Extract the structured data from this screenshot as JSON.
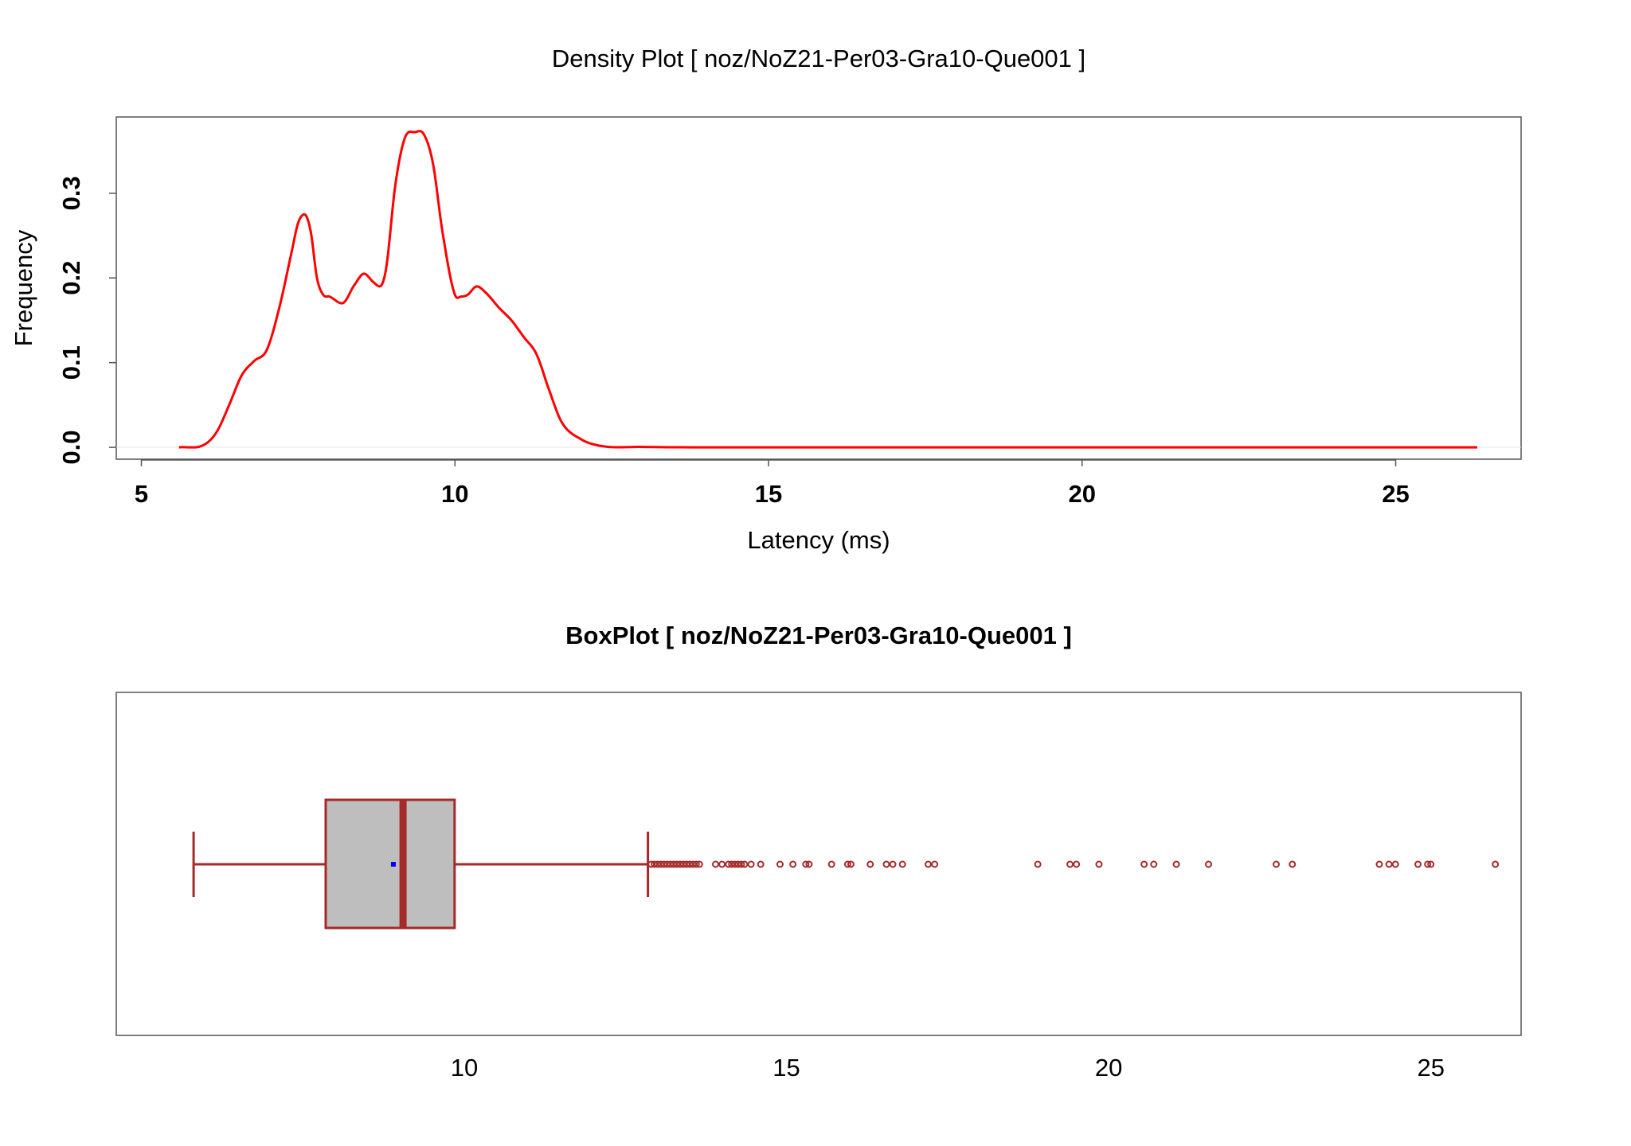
{
  "colors": {
    "density_line": "#ff0000",
    "box_stroke": "#a52a2a",
    "box_fill": "#bebebe",
    "mean_marker": "#0000ff",
    "frame": "#555555"
  },
  "chart_data": [
    {
      "type": "line",
      "title": "Density Plot [ noz/NoZ21-Per03-Gra10-Que001 ]",
      "xlabel": "Latency (ms)",
      "ylabel": "Frequency",
      "xlim": [
        4.6,
        27.0
      ],
      "ylim": [
        -0.014,
        0.39
      ],
      "xticks": [
        5,
        10,
        15,
        20,
        25
      ],
      "yticks": [
        0.0,
        0.1,
        0.2,
        0.3
      ],
      "ytick_labels": [
        "0.0",
        "0.1",
        "0.2",
        "0.3"
      ],
      "series": [
        {
          "x": [
            5.6,
            6.0,
            6.2,
            6.4,
            6.6,
            6.8,
            7.0,
            7.2,
            7.4,
            7.5,
            7.6,
            7.7,
            7.8,
            7.9,
            8.0,
            8.2,
            8.4,
            8.55,
            8.7,
            8.8,
            8.9,
            9.05,
            9.2,
            9.35,
            9.5,
            9.65,
            9.8,
            10.0,
            10.1,
            10.2,
            10.35,
            10.5,
            10.7,
            10.9,
            11.1,
            11.3,
            11.5,
            11.7,
            12.0,
            12.3,
            13.0,
            15.0,
            20.0,
            25.0,
            26.3
          ],
          "y": [
            0.0,
            0.003,
            0.018,
            0.05,
            0.085,
            0.102,
            0.115,
            0.165,
            0.232,
            0.265,
            0.275,
            0.255,
            0.2,
            0.18,
            0.178,
            0.17,
            0.192,
            0.205,
            0.195,
            0.19,
            0.21,
            0.31,
            0.365,
            0.372,
            0.37,
            0.335,
            0.255,
            0.18,
            0.178,
            0.18,
            0.19,
            0.182,
            0.165,
            0.15,
            0.13,
            0.11,
            0.068,
            0.03,
            0.01,
            0.002,
            0.0005,
            0.0,
            0.0,
            0.0,
            0.0
          ]
        }
      ]
    },
    {
      "type": "box",
      "title": "BoxPlot [ noz/NoZ21-Per03-Gra10-Que001 ]",
      "xlim": [
        4.6,
        26.4
      ],
      "xticks": [
        10,
        15,
        20,
        25
      ],
      "whisker_low": 5.8,
      "q1": 7.85,
      "median": 9.05,
      "q3": 9.85,
      "whisker_high": 12.85,
      "mean": 8.9,
      "outliers": [
        12.9,
        12.95,
        13.0,
        13.05,
        13.1,
        13.15,
        13.2,
        13.25,
        13.3,
        13.35,
        13.4,
        13.45,
        13.5,
        13.55,
        13.6,
        13.65,
        13.9,
        14.0,
        14.1,
        14.15,
        14.2,
        14.25,
        14.3,
        14.35,
        14.45,
        14.6,
        14.9,
        15.1,
        15.3,
        15.35,
        15.7,
        15.95,
        16.0,
        16.3,
        16.55,
        16.65,
        16.8,
        17.2,
        17.3,
        18.9,
        19.4,
        19.5,
        19.85,
        20.55,
        20.7,
        21.05,
        21.55,
        22.6,
        22.85,
        24.2,
        24.35,
        24.45,
        24.8,
        24.95,
        25.0,
        26.0
      ]
    }
  ]
}
